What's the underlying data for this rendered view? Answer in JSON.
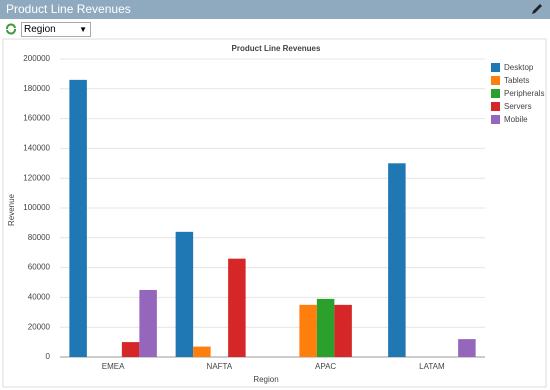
{
  "header": {
    "title": "Product Line Revenues"
  },
  "filter": {
    "value": "Region"
  },
  "chart_data": {
    "type": "bar",
    "title": "Product Line Revenues",
    "x_label": "Region",
    "y_label": "Revenue",
    "categories": [
      "EMEA",
      "NAFTA",
      "APAC",
      "LATAM"
    ],
    "series": [
      {
        "name": "Desktop",
        "color": "#1f77b4",
        "values": [
          186000,
          84000,
          0,
          130000
        ]
      },
      {
        "name": "Tablets",
        "color": "#ff7f0e",
        "values": [
          0,
          7000,
          35000,
          0
        ]
      },
      {
        "name": "Peripherals",
        "color": "#2ca02c",
        "values": [
          0,
          0,
          39000,
          0
        ]
      },
      {
        "name": "Servers",
        "color": "#d62728",
        "values": [
          10000,
          66000,
          35000,
          0
        ]
      },
      {
        "name": "Mobile",
        "color": "#9467bd",
        "values": [
          45000,
          0,
          0,
          12000
        ]
      }
    ],
    "ylim": [
      0,
      200000
    ],
    "yticks": [
      0,
      20000,
      40000,
      60000,
      80000,
      100000,
      120000,
      140000,
      160000,
      180000,
      200000
    ],
    "grid": true,
    "legend": "right"
  }
}
